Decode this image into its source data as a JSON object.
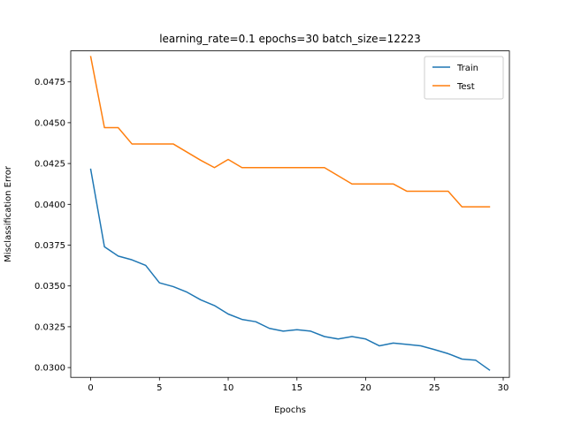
{
  "chart_data": {
    "type": "line",
    "title": "learning_rate=0.1 epochs=30 batch_size=12223",
    "xlabel": "Epochs",
    "ylabel": "Misclassification Error",
    "xlim": [
      -1.45,
      30.45
    ],
    "ylim": [
      0.0294,
      0.0494
    ],
    "xticks": [
      0,
      5,
      10,
      15,
      20,
      25,
      30
    ],
    "xtick_labels": [
      "0",
      "5",
      "10",
      "15",
      "20",
      "25",
      "30"
    ],
    "yticks": [
      0.03,
      0.0325,
      0.035,
      0.0375,
      0.04,
      0.0425,
      0.045,
      0.0475
    ],
    "ytick_labels": [
      "0.0300",
      "0.0325",
      "0.0350",
      "0.0375",
      "0.0400",
      "0.0425",
      "0.0450",
      "0.0475"
    ],
    "grid": false,
    "legend_position": "top-right",
    "x": [
      0,
      1,
      2,
      3,
      4,
      5,
      6,
      7,
      8,
      9,
      10,
      11,
      12,
      13,
      14,
      15,
      16,
      17,
      18,
      19,
      20,
      21,
      22,
      23,
      24,
      25,
      26,
      27,
      28,
      29
    ],
    "series": [
      {
        "name": "Train",
        "color": "#1f77b4",
        "values": [
          0.04215,
          0.0374,
          0.03683,
          0.0366,
          0.03626,
          0.03519,
          0.03496,
          0.03462,
          0.03415,
          0.0338,
          0.03328,
          0.03295,
          0.03281,
          0.0324,
          0.03223,
          0.03232,
          0.03223,
          0.0319,
          0.03175,
          0.0319,
          0.03175,
          0.03133,
          0.0315,
          0.03142,
          0.03133,
          0.0311,
          0.03085,
          0.03052,
          0.03045,
          0.02985
        ]
      },
      {
        "name": "Test",
        "color": "#ff7f0e",
        "values": [
          0.04905,
          0.0447,
          0.0447,
          0.0437,
          0.0437,
          0.0437,
          0.0437,
          0.0432,
          0.0427,
          0.04225,
          0.04275,
          0.04225,
          0.04225,
          0.04225,
          0.04225,
          0.04225,
          0.04225,
          0.04225,
          0.04175,
          0.04125,
          0.04125,
          0.04125,
          0.04125,
          0.0408,
          0.0408,
          0.0408,
          0.0408,
          0.03985,
          0.03985,
          0.03985
        ]
      }
    ]
  }
}
